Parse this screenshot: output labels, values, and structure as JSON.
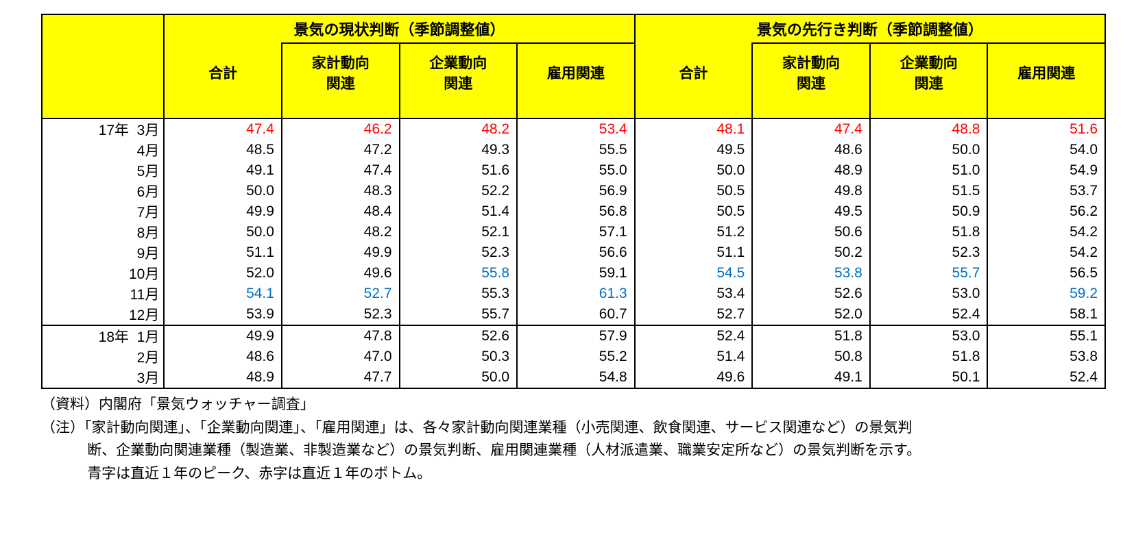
{
  "colors": {
    "header_bg": "#ffff00",
    "border": "#000000",
    "text": "#000000",
    "peak": "#0070c0",
    "bottom": "#ff0000",
    "page_bg": "#ffffff"
  },
  "columns": {
    "date_width_pct": 11.5,
    "cell_width_pct": 11.0625
  },
  "headers": {
    "group1": "景気の現状判断（季節調整値）",
    "group2": "景気の先行き判断（季節調整値）",
    "sub": [
      "合計",
      "家計動向\n関連",
      "企業動向\n関連",
      "雇用関連"
    ]
  },
  "rows": [
    {
      "label": "17年  3月",
      "group_top": true,
      "cells": [
        {
          "v": "47.4",
          "c": "red"
        },
        {
          "v": "46.2",
          "c": "red"
        },
        {
          "v": "48.2",
          "c": "red"
        },
        {
          "v": "53.4",
          "c": "red"
        },
        {
          "v": "48.1",
          "c": "red"
        },
        {
          "v": "47.4",
          "c": "red"
        },
        {
          "v": "48.8",
          "c": "red"
        },
        {
          "v": "51.6",
          "c": "red"
        }
      ]
    },
    {
      "label": "4月",
      "cells": [
        {
          "v": "48.5"
        },
        {
          "v": "47.2"
        },
        {
          "v": "49.3"
        },
        {
          "v": "55.5"
        },
        {
          "v": "49.5"
        },
        {
          "v": "48.6"
        },
        {
          "v": "50.0"
        },
        {
          "v": "54.0"
        }
      ]
    },
    {
      "label": "5月",
      "cells": [
        {
          "v": "49.1"
        },
        {
          "v": "47.4"
        },
        {
          "v": "51.6"
        },
        {
          "v": "55.0"
        },
        {
          "v": "50.0"
        },
        {
          "v": "48.9"
        },
        {
          "v": "51.0"
        },
        {
          "v": "54.9"
        }
      ]
    },
    {
      "label": "6月",
      "cells": [
        {
          "v": "50.0"
        },
        {
          "v": "48.3"
        },
        {
          "v": "52.2"
        },
        {
          "v": "56.9"
        },
        {
          "v": "50.5"
        },
        {
          "v": "49.8"
        },
        {
          "v": "51.5"
        },
        {
          "v": "53.7"
        }
      ]
    },
    {
      "label": "7月",
      "cells": [
        {
          "v": "49.9"
        },
        {
          "v": "48.4"
        },
        {
          "v": "51.4"
        },
        {
          "v": "56.8"
        },
        {
          "v": "50.5"
        },
        {
          "v": "49.5"
        },
        {
          "v": "50.9"
        },
        {
          "v": "56.2"
        }
      ]
    },
    {
      "label": "8月",
      "cells": [
        {
          "v": "50.0"
        },
        {
          "v": "48.2"
        },
        {
          "v": "52.1"
        },
        {
          "v": "57.1"
        },
        {
          "v": "51.2"
        },
        {
          "v": "50.6"
        },
        {
          "v": "51.8"
        },
        {
          "v": "54.2"
        }
      ]
    },
    {
      "label": "9月",
      "cells": [
        {
          "v": "51.1"
        },
        {
          "v": "49.9"
        },
        {
          "v": "52.3"
        },
        {
          "v": "56.6"
        },
        {
          "v": "51.1"
        },
        {
          "v": "50.2"
        },
        {
          "v": "52.3"
        },
        {
          "v": "54.2"
        }
      ]
    },
    {
      "label": "10月",
      "cells": [
        {
          "v": "52.0"
        },
        {
          "v": "49.6"
        },
        {
          "v": "55.8",
          "c": "blue"
        },
        {
          "v": "59.1"
        },
        {
          "v": "54.5",
          "c": "blue"
        },
        {
          "v": "53.8",
          "c": "blue"
        },
        {
          "v": "55.7",
          "c": "blue"
        },
        {
          "v": "56.5"
        }
      ]
    },
    {
      "label": "11月",
      "cells": [
        {
          "v": "54.1",
          "c": "blue"
        },
        {
          "v": "52.7",
          "c": "blue"
        },
        {
          "v": "55.3"
        },
        {
          "v": "61.3",
          "c": "blue"
        },
        {
          "v": "53.4"
        },
        {
          "v": "52.6"
        },
        {
          "v": "53.0"
        },
        {
          "v": "59.2",
          "c": "blue"
        }
      ]
    },
    {
      "label": "12月",
      "cells": [
        {
          "v": "53.9"
        },
        {
          "v": "52.3"
        },
        {
          "v": "55.7"
        },
        {
          "v": "60.7"
        },
        {
          "v": "52.7"
        },
        {
          "v": "52.0"
        },
        {
          "v": "52.4"
        },
        {
          "v": "58.1"
        }
      ]
    },
    {
      "label": "18年  1月",
      "group_top": true,
      "cells": [
        {
          "v": "49.9"
        },
        {
          "v": "47.8"
        },
        {
          "v": "52.6"
        },
        {
          "v": "57.9"
        },
        {
          "v": "52.4"
        },
        {
          "v": "51.8"
        },
        {
          "v": "53.0"
        },
        {
          "v": "55.1"
        }
      ]
    },
    {
      "label": "2月",
      "cells": [
        {
          "v": "48.6"
        },
        {
          "v": "47.0"
        },
        {
          "v": "50.3"
        },
        {
          "v": "55.2"
        },
        {
          "v": "51.4"
        },
        {
          "v": "50.8"
        },
        {
          "v": "51.8"
        },
        {
          "v": "53.8"
        }
      ]
    },
    {
      "label": "3月",
      "last": true,
      "cells": [
        {
          "v": "48.9"
        },
        {
          "v": "47.7"
        },
        {
          "v": "50.0"
        },
        {
          "v": "54.8"
        },
        {
          "v": "49.6"
        },
        {
          "v": "49.1"
        },
        {
          "v": "50.1"
        },
        {
          "v": "52.4"
        }
      ]
    }
  ],
  "notes": {
    "source": "（資料）内閣府「景気ウォッチャー調査」",
    "note1a": "（注）「家計動向関連」、「企業動向関連」、「雇用関連」は、各々家計動向関連業種（小売関連、飲食関連、サービス関連など）の景気判",
    "note1b": "断、企業動向関連業種（製造業、非製造業など）の景気判断、雇用関連業種（人材派遣業、職業安定所など）の景気判断を示す。",
    "note2": "青字は直近１年のピーク、赤字は直近１年のボトム。"
  }
}
